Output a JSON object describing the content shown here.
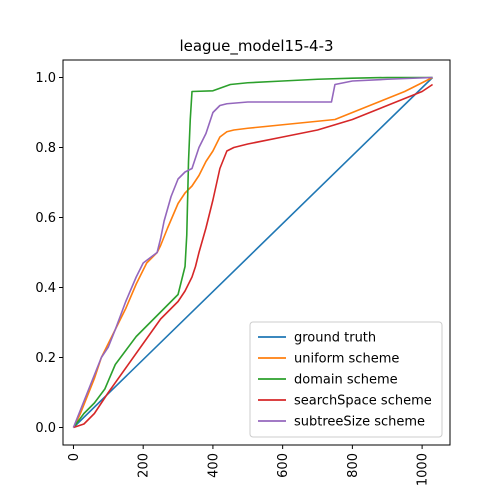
{
  "chart_data": {
    "type": "line",
    "title": "league_model15-4-3",
    "xlabel": "",
    "ylabel": "",
    "xlim": [
      -30,
      1080
    ],
    "ylim": [
      -0.05,
      1.05
    ],
    "xticks": [
      0,
      200,
      400,
      600,
      800,
      1000
    ],
    "yticks": [
      0.0,
      0.2,
      0.4,
      0.6,
      0.8,
      1.0
    ],
    "xtick_labels": [
      "0",
      "200",
      "400",
      "600",
      "800",
      "1000"
    ],
    "ytick_labels": [
      "0.0",
      "0.2",
      "0.4",
      "0.6",
      "0.8",
      "1.0"
    ],
    "xtick_rotation": 90,
    "grid": false,
    "legend_position": "lower-right",
    "series": [
      {
        "name": "ground truth",
        "color": "#1f77b4",
        "x": [
          0,
          1030
        ],
        "y": [
          0.0,
          1.0
        ]
      },
      {
        "name": "uniform scheme",
        "color": "#ff7f0e",
        "x": [
          0,
          20,
          40,
          60,
          80,
          100,
          120,
          150,
          180,
          210,
          240,
          250,
          270,
          300,
          320,
          340,
          360,
          380,
          400,
          420,
          440,
          460,
          500,
          600,
          700,
          750,
          800,
          850,
          900,
          950,
          1000,
          1030
        ],
        "y": [
          0.0,
          0.04,
          0.09,
          0.14,
          0.2,
          0.24,
          0.28,
          0.34,
          0.41,
          0.47,
          0.5,
          0.52,
          0.57,
          0.64,
          0.67,
          0.69,
          0.72,
          0.76,
          0.79,
          0.83,
          0.845,
          0.85,
          0.855,
          0.865,
          0.875,
          0.88,
          0.9,
          0.92,
          0.94,
          0.96,
          0.985,
          1.0
        ]
      },
      {
        "name": "domain scheme",
        "color": "#2ca02c",
        "x": [
          0,
          30,
          60,
          90,
          120,
          150,
          180,
          200,
          220,
          240,
          260,
          280,
          300,
          310,
          320,
          325,
          330,
          335,
          340,
          400,
          450,
          500,
          600,
          700,
          800,
          900,
          1030
        ],
        "y": [
          0.0,
          0.04,
          0.07,
          0.11,
          0.18,
          0.22,
          0.26,
          0.28,
          0.3,
          0.32,
          0.34,
          0.36,
          0.38,
          0.42,
          0.46,
          0.55,
          0.76,
          0.88,
          0.96,
          0.962,
          0.98,
          0.985,
          0.99,
          0.995,
          0.998,
          1.0,
          1.0
        ]
      },
      {
        "name": "searchSpace scheme",
        "color": "#d62728",
        "x": [
          0,
          30,
          60,
          100,
          150,
          200,
          250,
          300,
          320,
          340,
          350,
          360,
          380,
          400,
          420,
          440,
          460,
          500,
          600,
          700,
          800,
          900,
          950,
          1000,
          1030
        ],
        "y": [
          0.0,
          0.01,
          0.04,
          0.1,
          0.17,
          0.24,
          0.31,
          0.36,
          0.39,
          0.43,
          0.46,
          0.5,
          0.57,
          0.65,
          0.74,
          0.79,
          0.8,
          0.81,
          0.83,
          0.85,
          0.88,
          0.92,
          0.94,
          0.96,
          0.98
        ]
      },
      {
        "name": "subtreeSize scheme",
        "color": "#9467bd",
        "x": [
          0,
          20,
          40,
          60,
          80,
          100,
          120,
          150,
          180,
          200,
          240,
          250,
          260,
          280,
          300,
          320,
          340,
          360,
          380,
          400,
          420,
          440,
          500,
          600,
          740,
          750,
          800,
          900,
          1030
        ],
        "y": [
          0.0,
          0.05,
          0.1,
          0.15,
          0.2,
          0.23,
          0.28,
          0.36,
          0.43,
          0.47,
          0.5,
          0.54,
          0.59,
          0.66,
          0.71,
          0.73,
          0.74,
          0.8,
          0.84,
          0.9,
          0.92,
          0.925,
          0.93,
          0.93,
          0.93,
          0.98,
          0.99,
          0.995,
          1.0
        ]
      }
    ]
  }
}
